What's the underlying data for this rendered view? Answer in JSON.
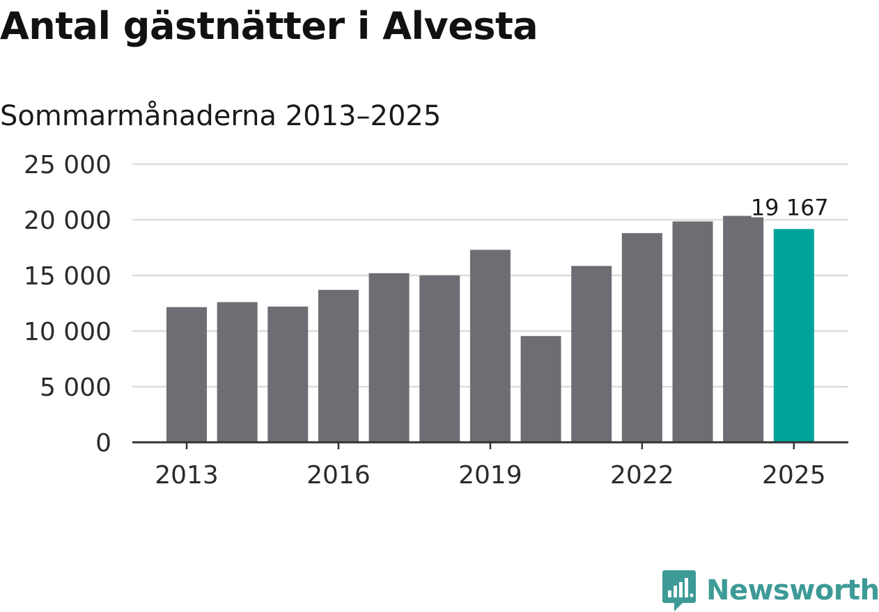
{
  "title": "Antal gästnätter i Alvesta",
  "subtitle": "Sommarmånaderna 2013–2025",
  "colors": {
    "bar": "#6e6d74",
    "highlight": "#00a49a",
    "grid": "#dcdcdc",
    "axis": "#333333",
    "logo": "#3d9a96"
  },
  "chart_data": {
    "type": "bar",
    "categories": [
      "2013",
      "2014",
      "2015",
      "2016",
      "2017",
      "2018",
      "2019",
      "2020",
      "2021",
      "2022",
      "2023",
      "2024",
      "2025"
    ],
    "values": [
      12150,
      12600,
      12200,
      13700,
      15200,
      15000,
      17300,
      9550,
      15850,
      18800,
      19850,
      20350,
      19167
    ],
    "highlight_index": 12,
    "ylim": [
      0,
      25000
    ],
    "yticks": [
      0,
      5000,
      10000,
      15000,
      20000,
      25000
    ],
    "ytick_labels": [
      "0",
      "5 000",
      "10 000",
      "15 000",
      "20 000",
      "25 000"
    ],
    "xtick_labels": [
      "2013",
      "",
      "",
      "2016",
      "",
      "",
      "2019",
      "",
      "",
      "2022",
      "",
      "",
      "2025"
    ],
    "value_label": "19 167",
    "grid": true,
    "xlabel": "",
    "ylabel": ""
  },
  "logo": {
    "text": "Newsworthy",
    "icon": "newsworthy-chart-icon"
  }
}
